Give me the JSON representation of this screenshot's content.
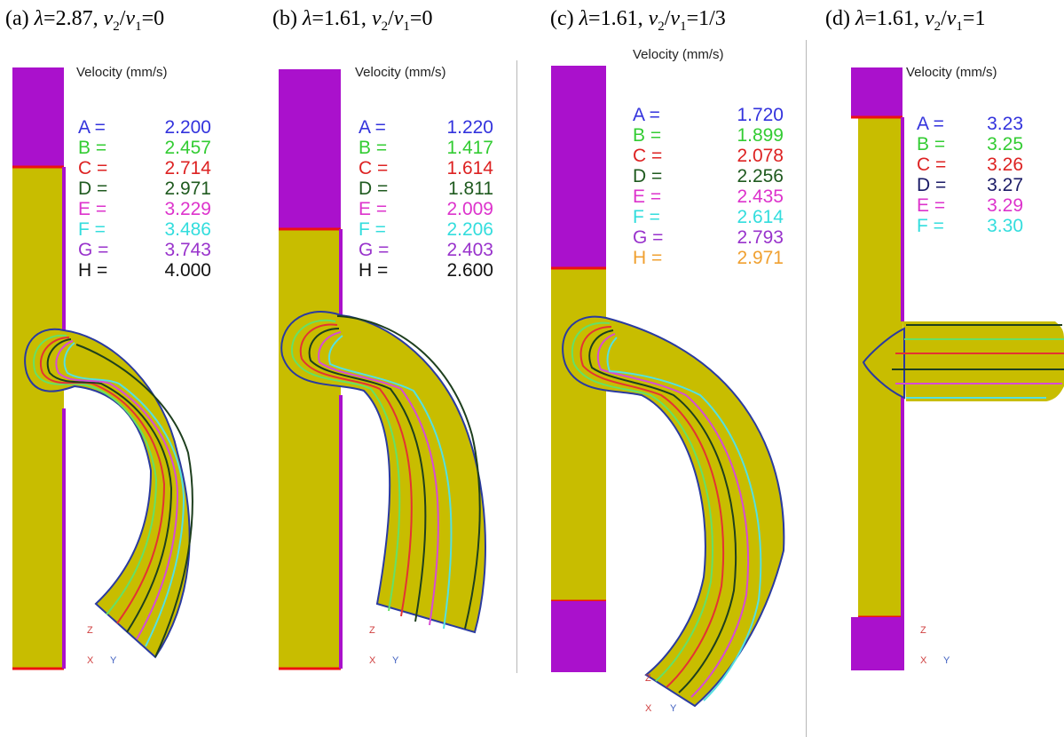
{
  "panels": [
    {
      "id": "a",
      "caption": {
        "prefix": "(a) ",
        "lambda_sym": "λ",
        "lambda_val": "=2.87, ",
        "v2": "v",
        "sub2": "2",
        "slash": "/",
        "v1": "v",
        "sub1": "1",
        "ratio": "=0"
      },
      "velocity_title": "Velocity (mm/s)",
      "legend": [
        {
          "label": "A =",
          "value": "2.200",
          "color": "#3333dd"
        },
        {
          "label": "B =",
          "value": "2.457",
          "color": "#33cc33"
        },
        {
          "label": "C =",
          "value": "2.714",
          "color": "#dd2222"
        },
        {
          "label": "D =",
          "value": "2.971",
          "color": "#1f5a1f"
        },
        {
          "label": "E =",
          "value": "3.229",
          "color": "#dd33cc"
        },
        {
          "label": "F =",
          "value": "3.486",
          "color": "#33dddd"
        },
        {
          "label": "G =",
          "value": "3.743",
          "color": "#9933cc"
        },
        {
          "label": "H =",
          "value": "4.000",
          "color": "#111111"
        }
      ],
      "axis": {
        "z": "Z",
        "x": "X",
        "y": "Y"
      }
    },
    {
      "id": "b",
      "caption": {
        "prefix": "(b) ",
        "lambda_sym": "λ",
        "lambda_val": "=1.61, ",
        "v2": "v",
        "sub2": "2",
        "slash": "/",
        "v1": "v",
        "sub1": "1",
        "ratio": "=0"
      },
      "velocity_title": "Velocity (mm/s)",
      "legend": [
        {
          "label": "A =",
          "value": "1.220",
          "color": "#3333dd"
        },
        {
          "label": "B =",
          "value": "1.417",
          "color": "#33cc33"
        },
        {
          "label": "C =",
          "value": "1.614",
          "color": "#dd2222"
        },
        {
          "label": "D =",
          "value": "1.811",
          "color": "#1f5a1f"
        },
        {
          "label": "E =",
          "value": "2.009",
          "color": "#dd33cc"
        },
        {
          "label": "F =",
          "value": "2.206",
          "color": "#33dddd"
        },
        {
          "label": "G =",
          "value": "2.403",
          "color": "#9933cc"
        },
        {
          "label": "H =",
          "value": "2.600",
          "color": "#111111"
        }
      ],
      "axis": {
        "z": "Z",
        "x": "X",
        "y": "Y"
      }
    },
    {
      "id": "c",
      "caption": {
        "prefix": "(c) ",
        "lambda_sym": "λ",
        "lambda_val": "=1.61, ",
        "v2": "v",
        "sub2": "2",
        "slash": "/",
        "v1": "v",
        "sub1": "1",
        "ratio": "=1/3"
      },
      "velocity_title": "Velocity (mm/s)",
      "legend": [
        {
          "label": "A =",
          "value": "1.720",
          "color": "#3333dd"
        },
        {
          "label": "B =",
          "value": "1.899",
          "color": "#33cc33"
        },
        {
          "label": "C =",
          "value": "2.078",
          "color": "#dd2222"
        },
        {
          "label": "D =",
          "value": "2.256",
          "color": "#1f5a1f"
        },
        {
          "label": "E =",
          "value": "2.435",
          "color": "#dd33cc"
        },
        {
          "label": "F =",
          "value": "2.614",
          "color": "#33dddd"
        },
        {
          "label": "G =",
          "value": "2.793",
          "color": "#9933cc"
        },
        {
          "label": "H =",
          "value": "2.971",
          "color": "#f0a030"
        }
      ],
      "axis": {
        "z": "Z",
        "x": "X",
        "y": "Y"
      }
    },
    {
      "id": "d",
      "caption": {
        "prefix": "(d) ",
        "lambda_sym": "λ",
        "lambda_val": "=1.61, ",
        "v2": "v",
        "sub2": "2",
        "slash": "/",
        "v1": "v",
        "sub1": "1",
        "ratio": "=1"
      },
      "velocity_title": "Velocity (mm/s)",
      "legend": [
        {
          "label": "A =",
          "value": "3.23",
          "color": "#3333dd"
        },
        {
          "label": "B =",
          "value": "3.25",
          "color": "#33cc33"
        },
        {
          "label": "C =",
          "value": "3.26",
          "color": "#dd2222"
        },
        {
          "label": "D =",
          "value": "3.27",
          "color": "#1a1a66"
        },
        {
          "label": "E =",
          "value": "3.29",
          "color": "#dd33cc"
        },
        {
          "label": "F =",
          "value": "3.30",
          "color": "#33dddd"
        }
      ],
      "axis": {
        "z": "Z",
        "x": "X",
        "y": "Y"
      }
    }
  ],
  "colors": {
    "workpiece": "#c8bd00",
    "die": "#aa11cc",
    "interface": "#ee1111",
    "contour_blue": "#2a3aa0",
    "contour_green": "#66e066",
    "contour_red": "#e33333",
    "contour_dark": "#1e3f1e",
    "contour_cyan": "#55e0e0",
    "contour_magenta": "#d64bd6"
  }
}
